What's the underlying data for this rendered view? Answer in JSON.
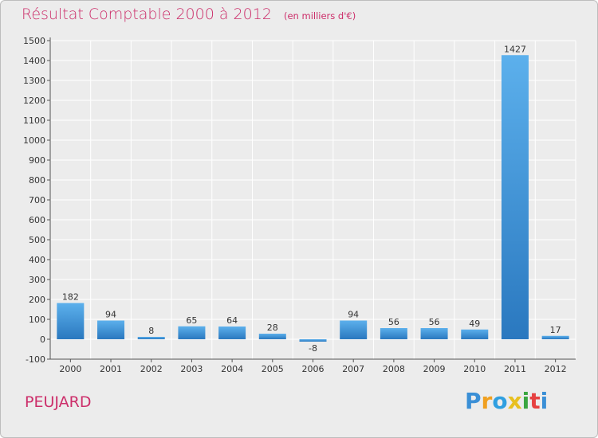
{
  "title": "Résultat Comptable 2000 à 2012",
  "subtitle": "(en milliers d'€)",
  "commune": "PEUJARD",
  "logo": {
    "letters": [
      "P",
      "r",
      "o",
      "x",
      "i",
      "t",
      "i"
    ],
    "colors": [
      "#3a8fd6",
      "#f0a020",
      "#2f9fe0",
      "#e8c020",
      "#3aa640",
      "#e64040",
      "#3a8fd6"
    ]
  },
  "colors": {
    "title": "#cc2e6a",
    "bar_top": "#5cb0ec",
    "bar_bottom": "#2a78bf",
    "background": "#ececec",
    "grid": "#ffffff"
  },
  "chart_data": {
    "type": "bar",
    "categories": [
      "2000",
      "2001",
      "2002",
      "2003",
      "2004",
      "2005",
      "2006",
      "2007",
      "2008",
      "2009",
      "2010",
      "2011",
      "2012"
    ],
    "values": [
      182,
      94,
      8,
      65,
      64,
      28,
      -8,
      94,
      56,
      56,
      49,
      1427,
      17
    ],
    "value_labels": [
      "182",
      "94",
      "8",
      "65",
      "64",
      "28",
      "-8",
      "94",
      "56",
      "56",
      "49",
      "1427",
      "17"
    ],
    "yticks": [
      -100,
      0,
      100,
      200,
      300,
      400,
      500,
      600,
      700,
      800,
      900,
      1000,
      1100,
      1200,
      1300,
      1400,
      1500
    ],
    "ylim": [
      -100,
      1500
    ],
    "grid": true,
    "legend": "none"
  }
}
